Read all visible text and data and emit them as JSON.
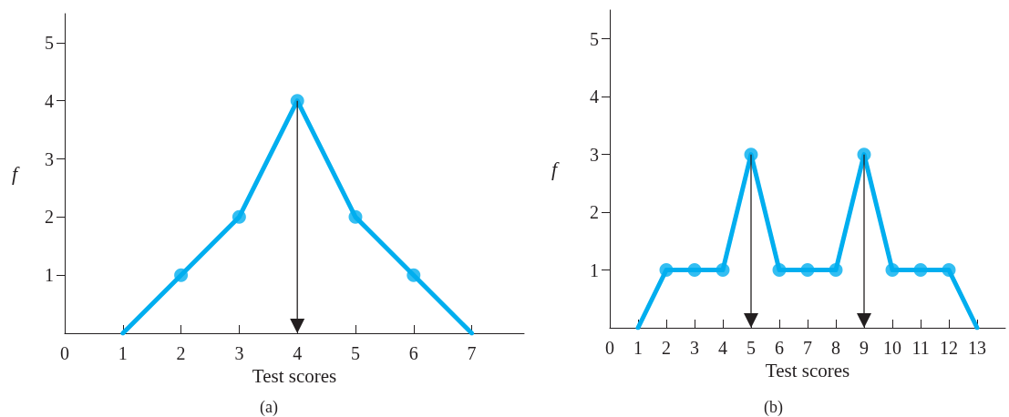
{
  "chart_data": [
    {
      "type": "line",
      "xlabel": "Test scores",
      "ylabel": "f",
      "annotations": [
        "(a)"
      ],
      "xlim": [
        0,
        7.9
      ],
      "xticks": [
        0,
        1,
        2,
        3,
        4,
        5,
        6,
        7
      ],
      "ylim": [
        0,
        5.5
      ],
      "yticks": [
        1,
        2,
        3,
        4,
        5
      ],
      "grid": false,
      "series": [
        {
          "marker": "none",
          "color": "#00aeef",
          "x": [
            1,
            2,
            3,
            4,
            5,
            6,
            7
          ],
          "values": [
            0,
            1,
            2,
            4,
            2,
            1,
            0
          ]
        },
        {
          "type": "scatter",
          "marker": "circle",
          "color": "#00aeef",
          "x": [
            2,
            3,
            4,
            5,
            6
          ],
          "values": [
            1,
            2,
            4,
            2,
            1
          ]
        }
      ],
      "ref_lines": [
        {
          "axis": "x",
          "value": 4,
          "color": "#231f20"
        }
      ]
    },
    {
      "type": "line",
      "xlabel": "Test scores",
      "ylabel": "f",
      "annotations": [
        "(b)"
      ],
      "xlim": [
        0,
        14
      ],
      "xticks": [
        0,
        1,
        2,
        3,
        4,
        5,
        6,
        7,
        8,
        9,
        10,
        11,
        12,
        13
      ],
      "ylim": [
        0,
        5.5
      ],
      "yticks": [
        1,
        2,
        3,
        4,
        5
      ],
      "grid": false,
      "series": [
        {
          "marker": "none",
          "color": "#00aeef",
          "x": [
            1,
            2,
            3,
            4,
            5,
            6,
            7,
            8,
            9,
            10,
            11,
            12,
            13
          ],
          "values": [
            0,
            1,
            1,
            1,
            3,
            1,
            1,
            1,
            3,
            1,
            1,
            1,
            0
          ]
        },
        {
          "type": "scatter",
          "marker": "circle",
          "color": "#00aeef",
          "x": [
            2,
            3,
            4,
            5,
            6,
            7,
            8,
            9,
            10,
            11,
            12
          ],
          "values": [
            1,
            1,
            1,
            3,
            1,
            1,
            1,
            3,
            1,
            1,
            1
          ]
        }
      ],
      "ref_lines": [
        {
          "axis": "x",
          "value": 5,
          "color": "#231f20"
        },
        {
          "axis": "x",
          "value": 9,
          "color": "#231f20"
        }
      ]
    }
  ]
}
